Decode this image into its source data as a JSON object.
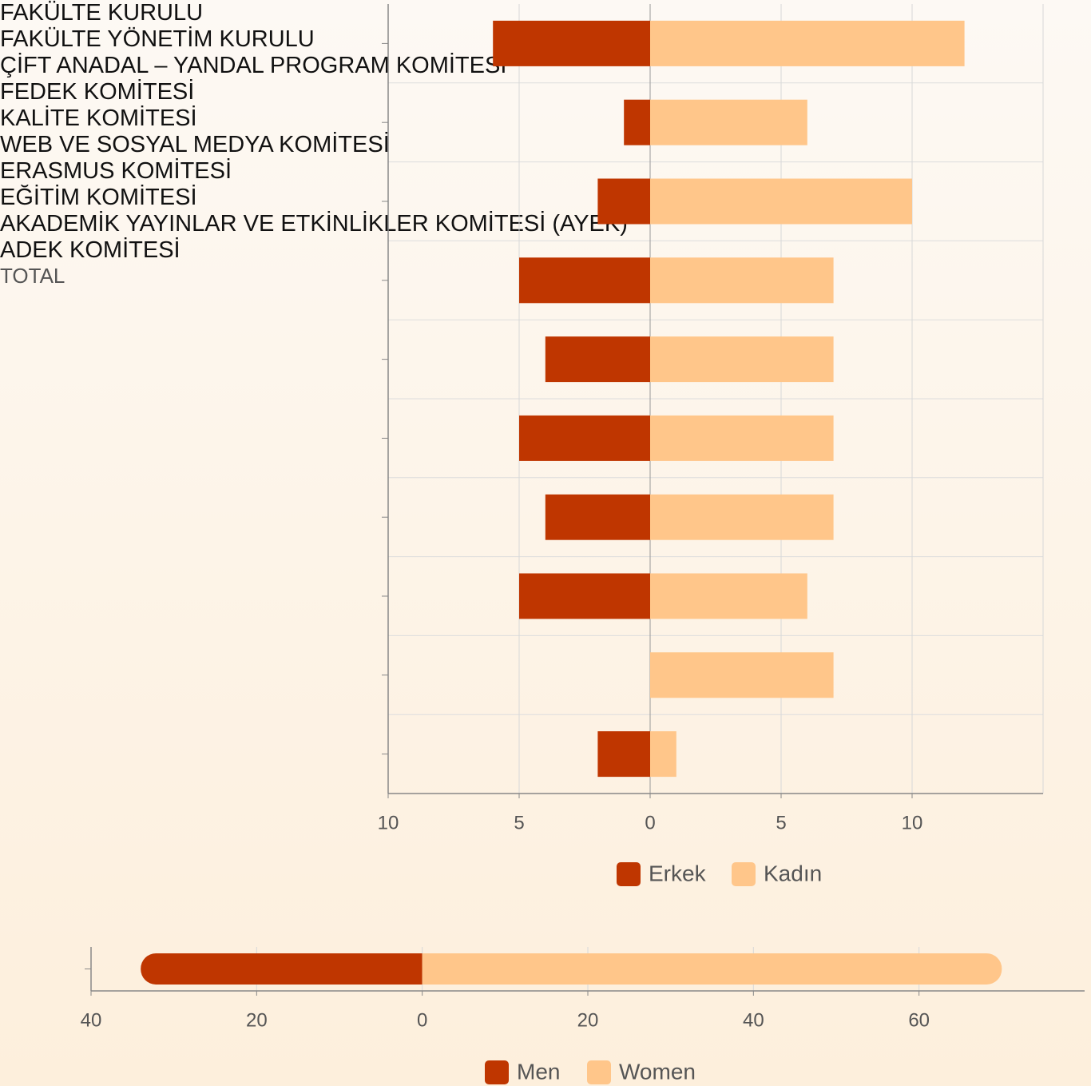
{
  "chart_data": [
    {
      "type": "bar",
      "categories": [
        "FAKÜLTE KURULU",
        "FAKÜLTE YÖNETİM \nKURULU",
        "ÇİFT ANADAL – YANDAL\nPROGRAM KOMİTESİ",
        "FEDEK KOMİTESİ",
        "KALİTE KOMİTESİ",
        "WEB VE SOSYAL MEDYA \nKOMİTESİ",
        "ERASMUS KOMİTESİ",
        "EĞİTİM KOMİTESİ",
        "AKADEMİK YAYINLAR VE \nETKİNLİKLER KOMİTESİ\n(AYEK)",
        "ADEK KOMİTESİ "
      ],
      "series": [
        {
          "name": "Erkek",
          "color": "#bf3600",
          "values": [
            -6,
            -1,
            -2,
            -5,
            -4,
            -5,
            -4,
            -5,
            0,
            -2
          ]
        },
        {
          "name": "Kadın",
          "color": "#ffc68a",
          "values": [
            12,
            6,
            10,
            7,
            7,
            7,
            7,
            6,
            7,
            1
          ]
        }
      ],
      "xlim": [
        -10,
        15
      ],
      "xticks": [
        {
          "value": -10,
          "label": "10"
        },
        {
          "value": -5,
          "label": "5"
        },
        0,
        5,
        10
      ],
      "grid": true
    },
    {
      "type": "bar",
      "categories": [
        "TOTAL"
      ],
      "series": [
        {
          "name": "Men",
          "color": "#bf3600",
          "values": [
            -34
          ]
        },
        {
          "name": "Women",
          "color": "#ffc68a",
          "values": [
            70
          ]
        }
      ],
      "xlim": [
        -40,
        80
      ],
      "xticks": [
        {
          "value": -40,
          "label": "40"
        },
        {
          "value": -20,
          "label": "20"
        },
        0,
        20,
        40,
        60
      ],
      "grid": true
    }
  ]
}
